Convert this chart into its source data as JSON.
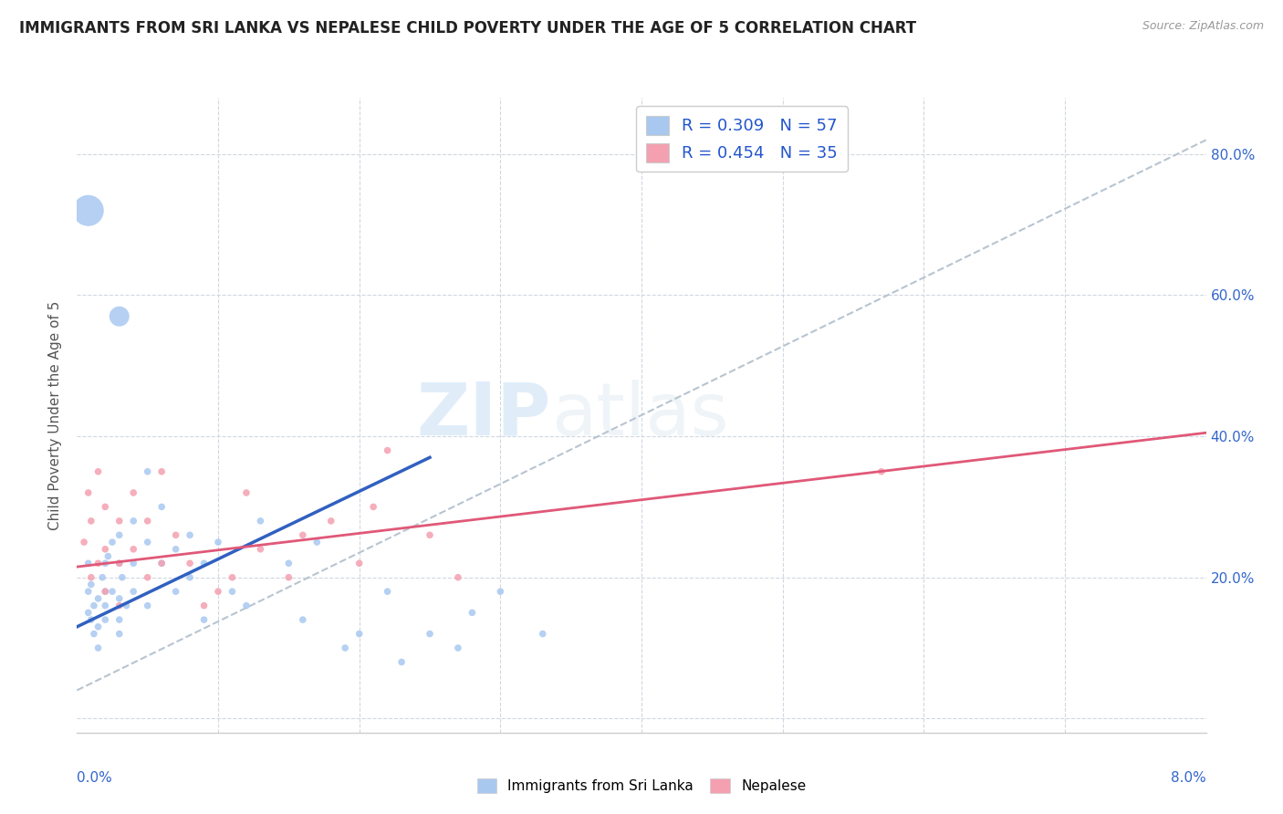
{
  "title": "IMMIGRANTS FROM SRI LANKA VS NEPALESE CHILD POVERTY UNDER THE AGE OF 5 CORRELATION CHART",
  "source": "Source: ZipAtlas.com",
  "ylabel": "Child Poverty Under the Age of 5",
  "xrange": [
    0.0,
    0.08
  ],
  "yrange": [
    -0.02,
    0.88
  ],
  "yticks": [
    0.0,
    0.2,
    0.4,
    0.6,
    0.8
  ],
  "ytick_labels": [
    "",
    "20.0%",
    "40.0%",
    "60.0%",
    "80.0%"
  ],
  "color_sri_lanka": "#a8c8f0",
  "color_nepalese": "#f4a0b0",
  "color_line_sri_lanka": "#3060c0",
  "color_line_nepalese": "#e05878",
  "color_trendline_dashed": "#b8c4d0",
  "watermark_zip": "ZIP",
  "watermark_atlas": "atlas",
  "sri_lanka_x": [
    0.0008,
    0.0008,
    0.0008,
    0.001,
    0.001,
    0.0012,
    0.0012,
    0.0015,
    0.0015,
    0.0015,
    0.0018,
    0.002,
    0.002,
    0.002,
    0.002,
    0.0022,
    0.0025,
    0.0025,
    0.003,
    0.003,
    0.003,
    0.003,
    0.003,
    0.0032,
    0.0035,
    0.004,
    0.004,
    0.004,
    0.005,
    0.005,
    0.005,
    0.006,
    0.006,
    0.007,
    0.007,
    0.008,
    0.008,
    0.009,
    0.009,
    0.01,
    0.011,
    0.012,
    0.013,
    0.015,
    0.016,
    0.017,
    0.019,
    0.02,
    0.022,
    0.023,
    0.025,
    0.027,
    0.028,
    0.03,
    0.033,
    0.0008,
    0.003
  ],
  "sri_lanka_y": [
    0.18,
    0.22,
    0.15,
    0.14,
    0.19,
    0.16,
    0.12,
    0.17,
    0.13,
    0.1,
    0.2,
    0.18,
    0.22,
    0.14,
    0.16,
    0.23,
    0.18,
    0.25,
    0.22,
    0.17,
    0.14,
    0.26,
    0.12,
    0.2,
    0.16,
    0.28,
    0.22,
    0.18,
    0.35,
    0.25,
    0.16,
    0.3,
    0.22,
    0.24,
    0.18,
    0.26,
    0.2,
    0.22,
    0.14,
    0.25,
    0.18,
    0.16,
    0.28,
    0.22,
    0.14,
    0.25,
    0.1,
    0.12,
    0.18,
    0.08,
    0.12,
    0.1,
    0.15,
    0.18,
    0.12,
    0.72,
    0.57
  ],
  "sri_lanka_sizes": [
    30,
    30,
    30,
    30,
    30,
    30,
    30,
    30,
    30,
    30,
    30,
    30,
    30,
    30,
    30,
    30,
    30,
    30,
    30,
    30,
    30,
    30,
    30,
    30,
    30,
    30,
    30,
    30,
    30,
    30,
    30,
    30,
    30,
    30,
    30,
    30,
    30,
    30,
    30,
    30,
    30,
    30,
    30,
    30,
    30,
    30,
    30,
    30,
    30,
    30,
    30,
    30,
    30,
    30,
    30,
    600,
    250
  ],
  "nepalese_x": [
    0.0005,
    0.0008,
    0.001,
    0.001,
    0.0015,
    0.0015,
    0.002,
    0.002,
    0.002,
    0.003,
    0.003,
    0.003,
    0.004,
    0.004,
    0.005,
    0.005,
    0.006,
    0.006,
    0.007,
    0.008,
    0.009,
    0.01,
    0.011,
    0.012,
    0.013,
    0.015,
    0.016,
    0.018,
    0.02,
    0.021,
    0.022,
    0.025,
    0.027,
    0.057
  ],
  "nepalese_y": [
    0.25,
    0.32,
    0.28,
    0.2,
    0.35,
    0.22,
    0.3,
    0.24,
    0.18,
    0.28,
    0.22,
    0.16,
    0.32,
    0.24,
    0.28,
    0.2,
    0.35,
    0.22,
    0.26,
    0.22,
    0.16,
    0.18,
    0.2,
    0.32,
    0.24,
    0.2,
    0.26,
    0.28,
    0.22,
    0.3,
    0.38,
    0.26,
    0.2,
    0.35
  ],
  "nepalese_sizes": [
    30,
    30,
    30,
    30,
    30,
    30,
    30,
    30,
    30,
    30,
    30,
    30,
    30,
    30,
    30,
    30,
    30,
    30,
    30,
    30,
    30,
    30,
    30,
    30,
    30,
    30,
    30,
    30,
    30,
    30,
    30,
    30,
    30,
    30
  ],
  "sl_trendline_x": [
    0.0,
    0.025
  ],
  "sl_trendline_y": [
    0.13,
    0.37
  ],
  "np_trendline_x": [
    0.0,
    0.08
  ],
  "np_trendline_y": [
    0.215,
    0.405
  ]
}
